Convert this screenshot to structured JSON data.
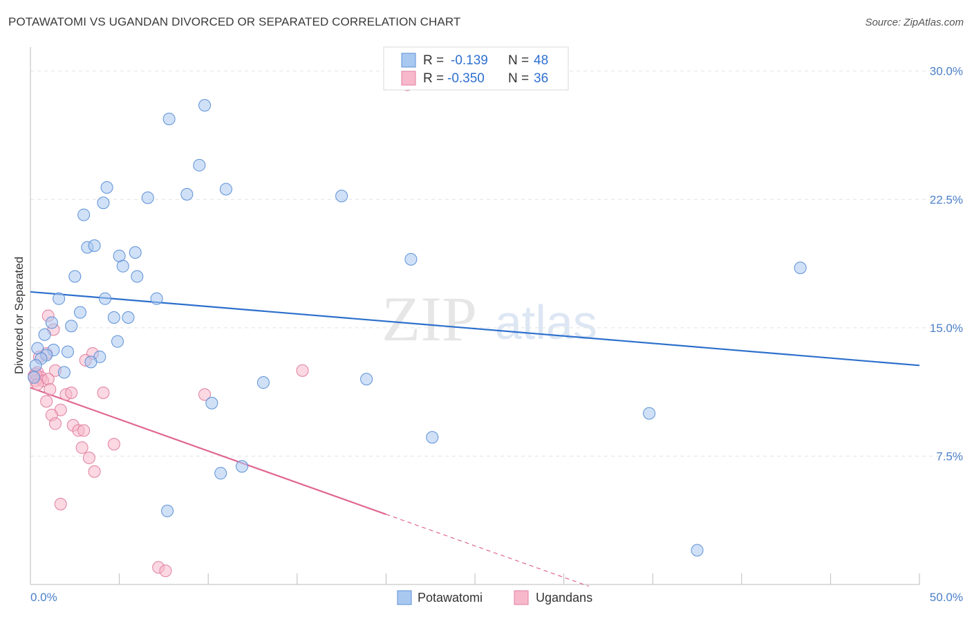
{
  "title": "POTAWATOMI VS UGANDAN DIVORCED OR SEPARATED CORRELATION CHART",
  "source": "Source: ZipAtlas.com",
  "watermark": {
    "zip": "ZIP",
    "atlas": "atlas"
  },
  "colors": {
    "blue_fill": "#a9c8f0",
    "blue_stroke": "#5b8fd6",
    "blue_line": "#2c6fcc",
    "pink_fill": "#f7b8cb",
    "pink_stroke": "#e07da0",
    "pink_line": "#e06690",
    "axis_label": "#4a7fc8",
    "grid": "#e2e2e2"
  },
  "legend": {
    "rows": [
      {
        "r_label": "R =",
        "r_value": "-0.139",
        "n_label": "N =",
        "n_value": "48"
      },
      {
        "r_label": "R =",
        "r_value": "-0.350",
        "n_label": "N =",
        "n_value": "36"
      }
    ]
  },
  "bottom_legend": [
    "Potawatomi",
    "Ugandans"
  ],
  "chart_data": {
    "type": "scatter",
    "title": "POTAWATOMI VS UGANDAN DIVORCED OR SEPARATED CORRELATION CHART",
    "xlabel": "",
    "ylabel": "Divorced or Separated",
    "xlim": [
      0,
      50
    ],
    "ylim": [
      0,
      31
    ],
    "x_tick_labels": [
      "0.0%",
      "50.0%"
    ],
    "y_ticks": [
      7.5,
      15.0,
      22.5,
      30.0
    ],
    "y_tick_labels": [
      "7.5%",
      "15.0%",
      "22.5%",
      "30.0%"
    ],
    "series": [
      {
        "name": "Potawatomi",
        "r": -0.139,
        "n": 48,
        "points": [
          [
            9.8,
            28.0
          ],
          [
            7.8,
            27.2
          ],
          [
            9.5,
            24.5
          ],
          [
            4.3,
            23.2
          ],
          [
            11.0,
            23.1
          ],
          [
            6.6,
            22.6
          ],
          [
            8.8,
            22.8
          ],
          [
            17.5,
            22.7
          ],
          [
            4.1,
            22.3
          ],
          [
            3.0,
            21.6
          ],
          [
            3.2,
            19.7
          ],
          [
            3.6,
            19.8
          ],
          [
            5.0,
            19.2
          ],
          [
            5.9,
            19.4
          ],
          [
            21.4,
            19.0
          ],
          [
            5.2,
            18.6
          ],
          [
            43.3,
            18.5
          ],
          [
            2.5,
            18.0
          ],
          [
            6.0,
            18.0
          ],
          [
            1.6,
            16.7
          ],
          [
            4.2,
            16.7
          ],
          [
            7.1,
            16.7
          ],
          [
            2.8,
            15.9
          ],
          [
            4.7,
            15.6
          ],
          [
            5.5,
            15.6
          ],
          [
            1.2,
            15.3
          ],
          [
            2.3,
            15.1
          ],
          [
            0.8,
            14.6
          ],
          [
            4.9,
            14.2
          ],
          [
            0.4,
            13.8
          ],
          [
            1.3,
            13.7
          ],
          [
            2.1,
            13.6
          ],
          [
            0.9,
            13.4
          ],
          [
            3.9,
            13.3
          ],
          [
            0.6,
            13.2
          ],
          [
            3.4,
            13.0
          ],
          [
            0.3,
            12.8
          ],
          [
            1.9,
            12.4
          ],
          [
            13.1,
            11.8
          ],
          [
            18.9,
            12.0
          ],
          [
            10.2,
            10.6
          ],
          [
            34.8,
            10.0
          ],
          [
            22.6,
            8.6
          ],
          [
            11.9,
            6.9
          ],
          [
            10.7,
            6.5
          ],
          [
            7.7,
            4.3
          ],
          [
            37.5,
            2.0
          ],
          [
            0.2,
            12.1
          ]
        ],
        "trend": {
          "x": [
            0,
            50
          ],
          "y": [
            17.1,
            12.8
          ]
        }
      },
      {
        "name": "Ugandans",
        "r": -0.35,
        "n": 36,
        "points": [
          [
            21.2,
            29.2
          ],
          [
            1.0,
            15.7
          ],
          [
            1.3,
            14.9
          ],
          [
            0.5,
            13.3
          ],
          [
            0.9,
            13.5
          ],
          [
            3.5,
            13.5
          ],
          [
            3.1,
            13.1
          ],
          [
            1.4,
            12.5
          ],
          [
            0.4,
            12.4
          ],
          [
            0.2,
            12.2
          ],
          [
            0.6,
            12.1
          ],
          [
            0.3,
            11.9
          ],
          [
            0.7,
            11.9
          ],
          [
            0.4,
            11.7
          ],
          [
            1.0,
            12.0
          ],
          [
            15.3,
            12.5
          ],
          [
            1.1,
            11.4
          ],
          [
            2.0,
            11.1
          ],
          [
            2.3,
            11.2
          ],
          [
            4.1,
            11.2
          ],
          [
            9.8,
            11.1
          ],
          [
            0.9,
            10.7
          ],
          [
            1.7,
            10.2
          ],
          [
            1.2,
            9.9
          ],
          [
            1.4,
            9.4
          ],
          [
            2.4,
            9.3
          ],
          [
            2.7,
            9.0
          ],
          [
            3.0,
            9.0
          ],
          [
            4.7,
            8.2
          ],
          [
            2.9,
            8.0
          ],
          [
            3.3,
            7.4
          ],
          [
            3.6,
            6.6
          ],
          [
            1.7,
            4.7
          ],
          [
            7.2,
            1.0
          ],
          [
            7.6,
            0.8
          ],
          [
            0.3,
            12.3
          ]
        ],
        "trend": {
          "x": [
            0,
            20
          ],
          "y": [
            11.5,
            4.1
          ]
        },
        "trend_extension": {
          "x": [
            20,
            31.4
          ],
          "y": [
            4.1,
            -0.1
          ]
        }
      }
    ]
  }
}
